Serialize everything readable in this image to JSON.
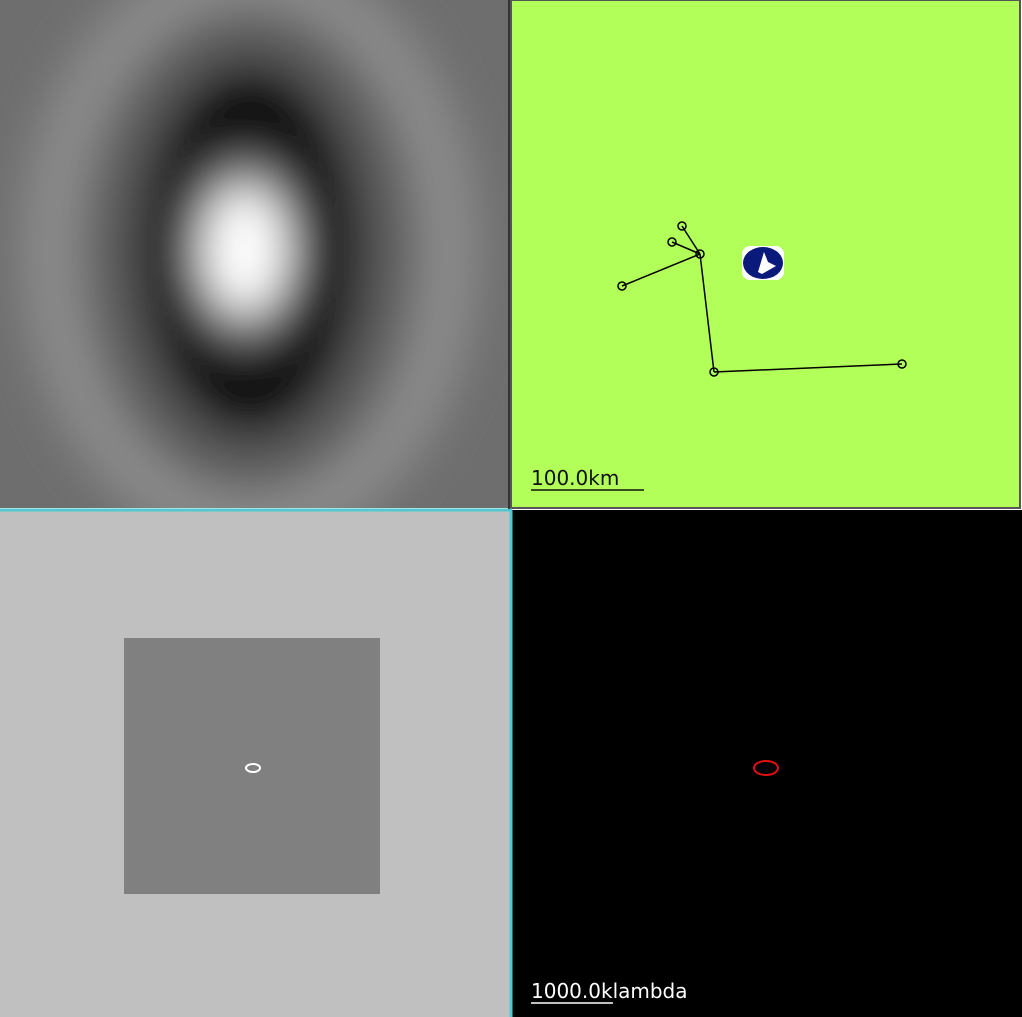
{
  "array_panel": {
    "scale_label": "100.0km"
  },
  "uv_panel": {
    "scale_label": "1000.0klambda"
  }
}
